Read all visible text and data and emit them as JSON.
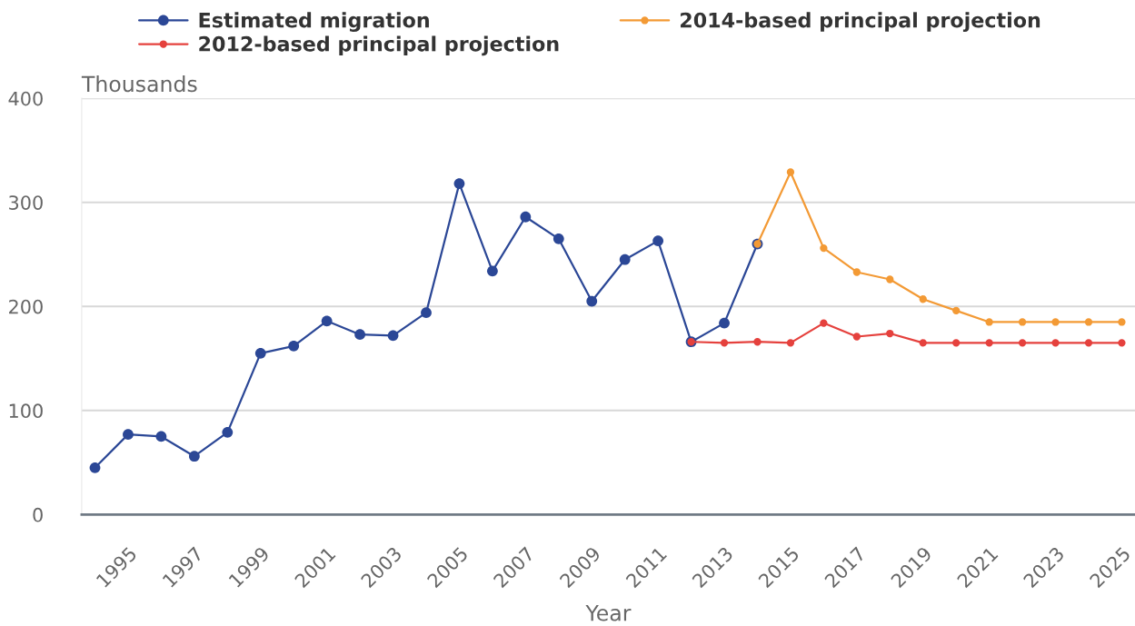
{
  "chart_data": {
    "type": "line",
    "xlabel": "Year",
    "ylabel": "Thousands",
    "series": [
      {
        "name": "Estimated migration",
        "color": "#2b4796",
        "x": [
          1994,
          1995,
          1996,
          1997,
          1998,
          1999,
          2000,
          2001,
          2002,
          2003,
          2004,
          2005,
          2006,
          2007,
          2008,
          2009,
          2010,
          2011,
          2012,
          2013,
          2014
        ],
        "values": [
          45,
          77,
          75,
          56,
          79,
          155,
          162,
          186,
          173,
          172,
          194,
          318,
          234,
          286,
          265,
          205,
          245,
          263,
          166,
          184,
          260
        ]
      },
      {
        "name": "2014-based principal projection",
        "color": "#f39a35",
        "x": [
          2014,
          2015,
          2016,
          2017,
          2018,
          2019,
          2020,
          2021,
          2022,
          2023,
          2024,
          2025
        ],
        "values": [
          260,
          329,
          256,
          233,
          226,
          207,
          196,
          185,
          185,
          185,
          185,
          185
        ]
      },
      {
        "name": "2012-based principal projection",
        "color": "#e5413d",
        "x": [
          2012,
          2013,
          2014,
          2015,
          2016,
          2017,
          2018,
          2019,
          2020,
          2021,
          2022,
          2023,
          2024,
          2025
        ],
        "values": [
          166,
          165,
          166,
          165,
          184,
          171,
          174,
          165,
          165,
          165,
          165,
          165,
          165,
          165
        ]
      }
    ],
    "xlim": [
      1993.6,
      2025.4
    ],
    "xticks": [
      1995,
      1997,
      1999,
      2001,
      2003,
      2005,
      2007,
      2009,
      2011,
      2013,
      2015,
      2017,
      2019,
      2021,
      2023,
      2025
    ],
    "ylim": [
      0,
      400
    ],
    "yticks": [
      0,
      100,
      200,
      300,
      400
    ],
    "grid": "y",
    "legend": "top",
    "marker": "circle",
    "line_style": "solid"
  }
}
